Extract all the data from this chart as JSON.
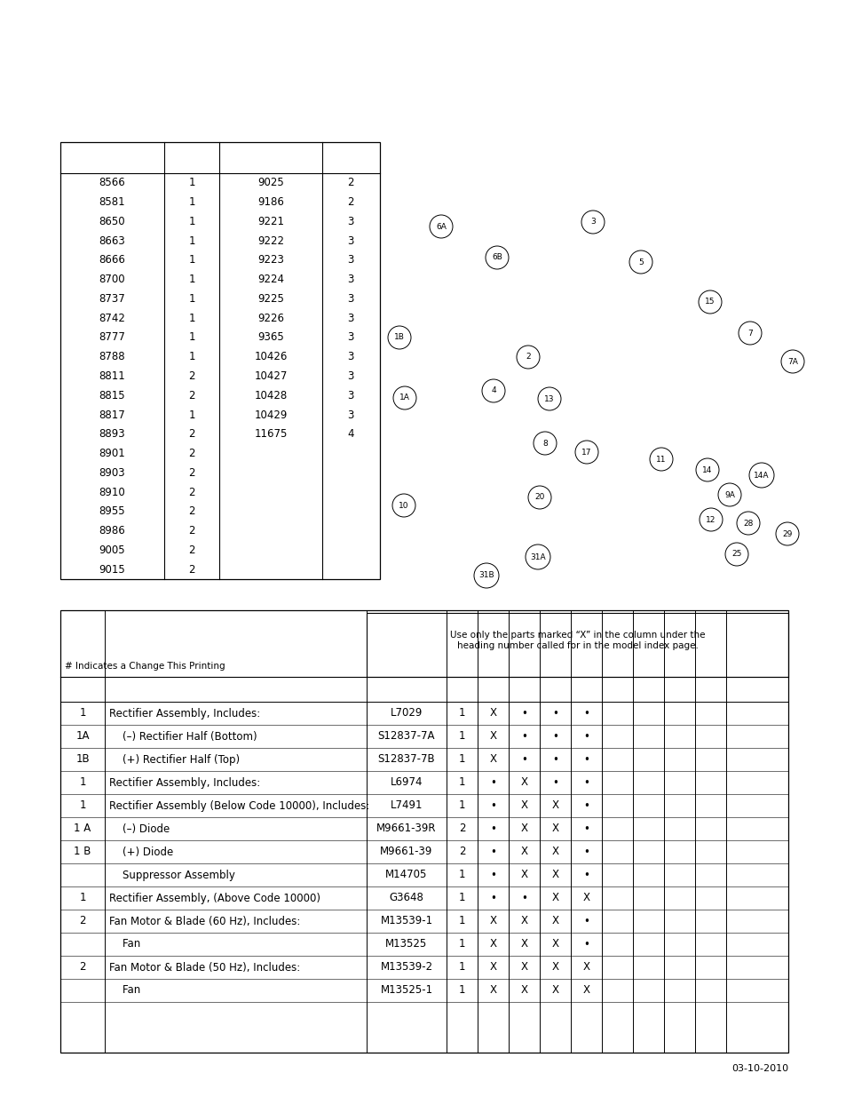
{
  "bg_color": "#ffffff",
  "top_table": {
    "col1": [
      "8566",
      "8581",
      "8650",
      "8663",
      "8666",
      "8700",
      "8737",
      "8742",
      "8777",
      "8788",
      "8811",
      "8815",
      "8817",
      "8893",
      "8901",
      "8903",
      "8910",
      "8955",
      "8986",
      "9005",
      "9015"
    ],
    "col2": [
      "1",
      "1",
      "1",
      "1",
      "1",
      "1",
      "1",
      "1",
      "1",
      "1",
      "2",
      "2",
      "1",
      "2",
      "2",
      "2",
      "2",
      "2",
      "2",
      "2",
      "2"
    ],
    "col3": [
      "9025",
      "9186",
      "9221",
      "9222",
      "9223",
      "9224",
      "9225",
      "9226",
      "9365",
      "10426",
      "10427",
      "10428",
      "10429",
      "11675",
      "",
      "",
      "",
      "",
      "",
      "",
      ""
    ],
    "col4": [
      "2",
      "2",
      "3",
      "3",
      "3",
      "3",
      "3",
      "3",
      "3",
      "3",
      "3",
      "3",
      "3",
      "4",
      "",
      "",
      "",
      "",
      "",
      "",
      ""
    ]
  },
  "diagram_labels": [
    [
      "6A",
      497,
      980
    ],
    [
      "6B",
      560,
      945
    ],
    [
      "3",
      668,
      985
    ],
    [
      "5",
      722,
      940
    ],
    [
      "15",
      800,
      895
    ],
    [
      "7",
      845,
      860
    ],
    [
      "7A",
      893,
      828
    ],
    [
      "1B",
      450,
      855
    ],
    [
      "2",
      595,
      833
    ],
    [
      "4",
      556,
      795
    ],
    [
      "13",
      619,
      786
    ],
    [
      "1A",
      456,
      787
    ],
    [
      "8",
      614,
      736
    ],
    [
      "17",
      661,
      726
    ],
    [
      "11",
      745,
      718
    ],
    [
      "14",
      797,
      706
    ],
    [
      "14A",
      858,
      700
    ],
    [
      "9A",
      822,
      678
    ],
    [
      "12",
      801,
      650
    ],
    [
      "28",
      843,
      646
    ],
    [
      "29",
      887,
      634
    ],
    [
      "10",
      455,
      666
    ],
    [
      "20",
      608,
      675
    ],
    [
      "25",
      830,
      611
    ],
    [
      "31A",
      606,
      608
    ],
    [
      "31B",
      548,
      587
    ]
  ],
  "bottom_table_header_note": "# Indicates a Change This Printing",
  "bottom_table_header_box": "Use only the parts marked “X” in the column under the\nheading number called for in the model index page.",
  "bottom_rows": [
    {
      "item": "1",
      "indent": false,
      "desc": "Rectifier Assembly, Includes:",
      "part": "L7029",
      "qty": "1",
      "cols": [
        "X",
        "•",
        "•",
        "•",
        "",
        "",
        "",
        ""
      ]
    },
    {
      "item": "1A",
      "indent": true,
      "desc": "(–) Rectifier Half (Bottom)",
      "part": "S12837-7A",
      "qty": "1",
      "cols": [
        "X",
        "•",
        "•",
        "•",
        "",
        "",
        "",
        ""
      ]
    },
    {
      "item": "1B",
      "indent": true,
      "desc": "(+) Rectifier Half (Top)",
      "part": "S12837-7B",
      "qty": "1",
      "cols": [
        "X",
        "•",
        "•",
        "•",
        "",
        "",
        "",
        ""
      ]
    },
    {
      "item": "1",
      "indent": false,
      "desc": "Rectifier Assembly, Includes:",
      "part": "L6974",
      "qty": "1",
      "cols": [
        "•",
        "X",
        "•",
        "•",
        "",
        "",
        "",
        ""
      ]
    },
    {
      "item": "1",
      "indent": false,
      "desc": "Rectifier Assembly (Below Code 10000), Includes:",
      "part": "L7491",
      "qty": "1",
      "cols": [
        "•",
        "X",
        "X",
        "•",
        "",
        "",
        "",
        ""
      ]
    },
    {
      "item": "1 A",
      "indent": true,
      "desc": "(–) Diode",
      "part": "M9661-39R",
      "qty": "2",
      "cols": [
        "•",
        "X",
        "X",
        "•",
        "",
        "",
        "",
        ""
      ]
    },
    {
      "item": "1 B",
      "indent": true,
      "desc": "(+) Diode",
      "part": "M9661-39",
      "qty": "2",
      "cols": [
        "•",
        "X",
        "X",
        "•",
        "",
        "",
        "",
        ""
      ]
    },
    {
      "item": "",
      "indent": true,
      "desc": "Suppressor Assembly",
      "part": "M14705",
      "qty": "1",
      "cols": [
        "•",
        "X",
        "X",
        "•",
        "",
        "",
        "",
        ""
      ]
    },
    {
      "item": "1",
      "indent": false,
      "desc": "Rectifier Assembly, (Above Code 10000)",
      "part": "G3648",
      "qty": "1",
      "cols": [
        "•",
        "•",
        "X",
        "X",
        "",
        "",
        "",
        ""
      ]
    },
    {
      "item": "2",
      "indent": false,
      "desc": "Fan Motor & Blade (60 Hz), Includes:",
      "part": "M13539-1",
      "qty": "1",
      "cols": [
        "X",
        "X",
        "X",
        "•",
        "",
        "",
        "",
        ""
      ]
    },
    {
      "item": "",
      "indent": true,
      "desc": "Fan",
      "part": "M13525",
      "qty": "1",
      "cols": [
        "X",
        "X",
        "X",
        "•",
        "",
        "",
        "",
        ""
      ]
    },
    {
      "item": "2",
      "indent": false,
      "desc": "Fan Motor & Blade (50 Hz), Includes:",
      "part": "M13539-2",
      "qty": "1",
      "cols": [
        "X",
        "X",
        "X",
        "X",
        "",
        "",
        "",
        ""
      ]
    },
    {
      "item": "",
      "indent": true,
      "desc": "Fan",
      "part": "M13525-1",
      "qty": "1",
      "cols": [
        "X",
        "X",
        "X",
        "X",
        "",
        "",
        "",
        ""
      ]
    }
  ],
  "date_text": "03-10-2010"
}
